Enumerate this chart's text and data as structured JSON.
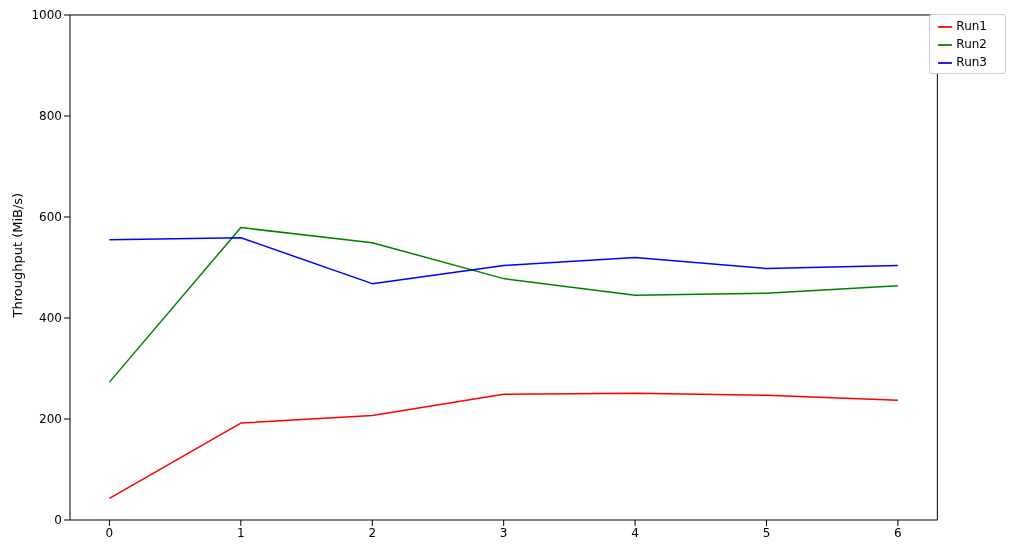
{
  "chart_data": {
    "type": "line",
    "ylabel": "Throughput (MiB/s)",
    "x": [
      0,
      1,
      2,
      3,
      4,
      5,
      6
    ],
    "series": [
      {
        "name": "Run1",
        "color": "#ff0000",
        "values": [
          43,
          192,
          207,
          249,
          251,
          247,
          237
        ]
      },
      {
        "name": "Run2",
        "color": "#008000",
        "values": [
          273,
          579,
          549,
          478,
          445,
          449,
          464
        ]
      },
      {
        "name": "Run3",
        "color": "#0000ff",
        "values": [
          555,
          559,
          468,
          504,
          520,
          498,
          504
        ]
      }
    ],
    "xlim": [
      -0.3,
      6.3
    ],
    "xticks": [
      0,
      1,
      2,
      3,
      4,
      5,
      6
    ],
    "ylim": [
      0,
      1000
    ],
    "yticks": [
      0,
      200,
      400,
      600,
      800,
      1000
    ],
    "grid": false,
    "legend": "top right",
    "marker": "none",
    "line_style": "solid"
  }
}
